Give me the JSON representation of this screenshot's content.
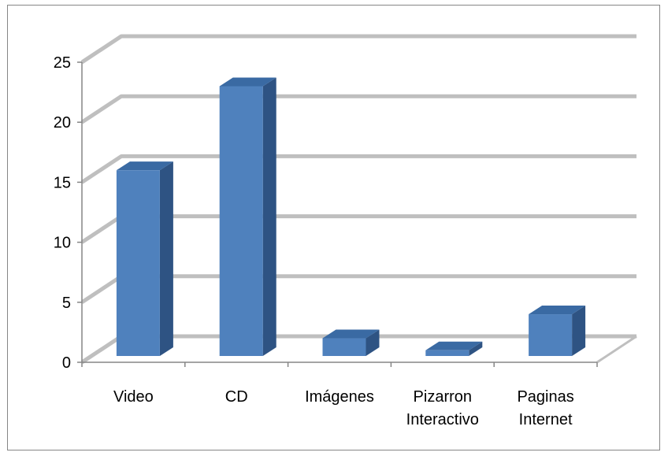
{
  "chart_data": {
    "type": "bar",
    "categories": [
      [
        "Video"
      ],
      [
        "CD"
      ],
      [
        "Imágenes"
      ],
      [
        "Pizarron",
        "Interactivo"
      ],
      [
        "Paginas",
        "Internet"
      ]
    ],
    "values": [
      16,
      23,
      2,
      1,
      4
    ],
    "ylim": [
      0,
      25
    ],
    "yticks": [
      0,
      5,
      10,
      15,
      20,
      25
    ],
    "grid": true,
    "legend": "none",
    "colors": {
      "bar_front": "#4F81BD",
      "bar_side": "#2E5383",
      "bar_top": "#3A6AA3",
      "gridline": "#BFBFBF",
      "axis": "#868686"
    }
  }
}
